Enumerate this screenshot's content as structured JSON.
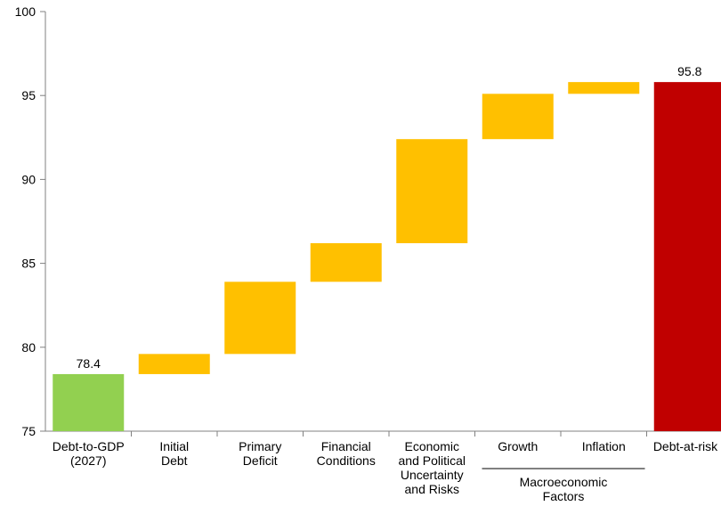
{
  "chart_data": {
    "type": "bar",
    "subtype": "waterfall",
    "title": "",
    "xlabel": "",
    "ylabel": "",
    "ylim": [
      75,
      100
    ],
    "yticks": [
      75,
      80,
      85,
      90,
      95,
      100
    ],
    "grid": false,
    "legend": "none",
    "categories": [
      [
        "Debt-to-GDP",
        "(2027)"
      ],
      [
        "Initial",
        "Debt"
      ],
      [
        "Primary",
        "Deficit"
      ],
      [
        "Financial",
        "Conditions"
      ],
      [
        "Economic",
        "and Political",
        "Uncertainty",
        "and Risks"
      ],
      [
        "Growth"
      ],
      [
        "Inflation"
      ],
      [
        "Debt-at-risk"
      ]
    ],
    "bars": [
      {
        "kind": "total",
        "start": 75,
        "end": 78.4,
        "label": "78.4",
        "color": "#92D050"
      },
      {
        "kind": "increment",
        "start": 78.4,
        "end": 79.6,
        "color": "#FFC000"
      },
      {
        "kind": "increment",
        "start": 79.6,
        "end": 83.9,
        "color": "#FFC000"
      },
      {
        "kind": "increment",
        "start": 83.9,
        "end": 86.2,
        "color": "#FFC000"
      },
      {
        "kind": "increment",
        "start": 86.2,
        "end": 92.4,
        "color": "#FFC000"
      },
      {
        "kind": "increment",
        "start": 92.4,
        "end": 95.1,
        "color": "#FFC000"
      },
      {
        "kind": "increment",
        "start": 95.1,
        "end": 95.8,
        "color": "#FFC000"
      },
      {
        "kind": "total",
        "start": 75,
        "end": 95.8,
        "label": "95.8",
        "color": "#C00000"
      }
    ],
    "group_label": {
      "lines": [
        "Macroeconomic",
        "Factors"
      ],
      "spans_categories": [
        5,
        6
      ]
    }
  }
}
